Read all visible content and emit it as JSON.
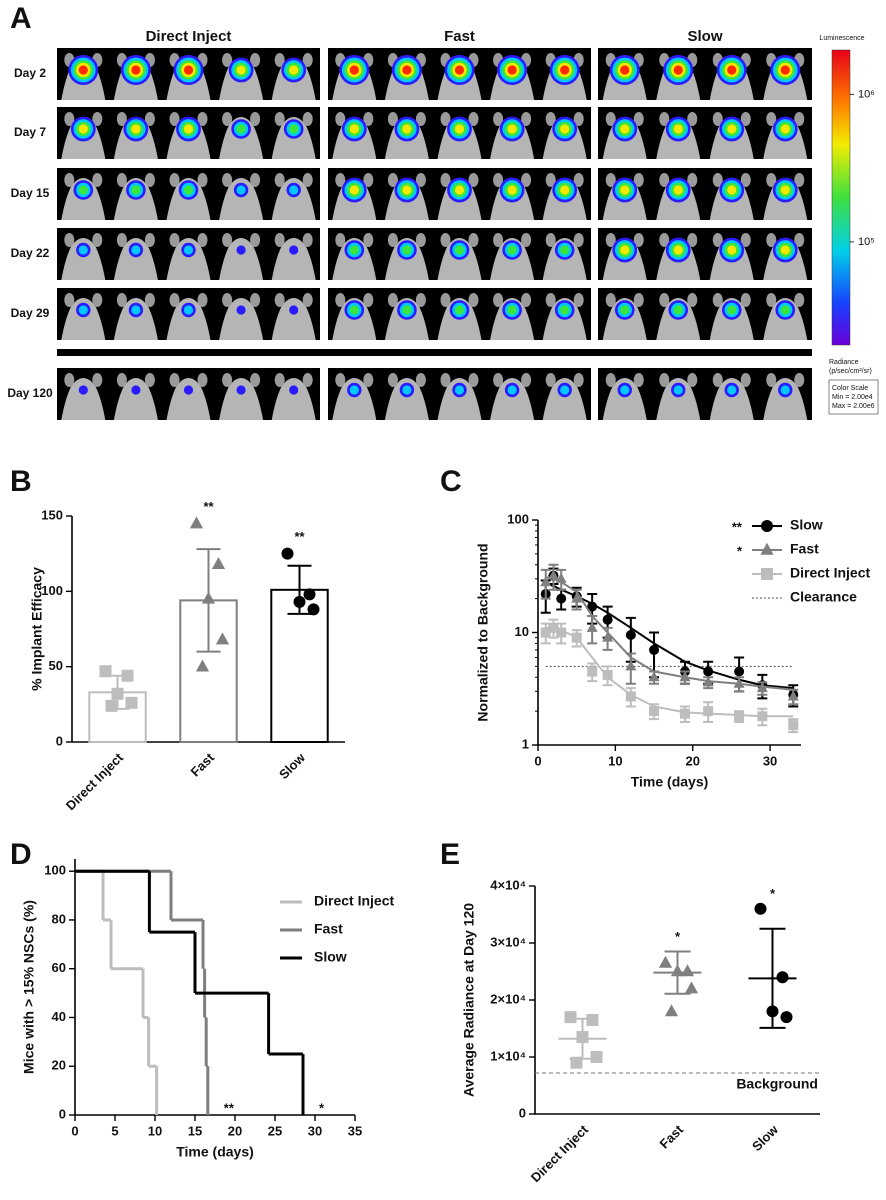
{
  "imaging": {
    "label": "A",
    "columns": [
      "Direct Inject",
      "Fast",
      "Slow"
    ],
    "rows": [
      "Day 2",
      "Day 7",
      "Day 15",
      "Day 22",
      "Day 29",
      "Day 120"
    ],
    "colorbar": {
      "title": "Luminescence",
      "lim": [
        20000,
        2000000
      ],
      "log": true,
      "ticks": [
        {
          "value": 100000,
          "label": "10⁵"
        },
        {
          "value": 1000000,
          "label": "10⁶"
        }
      ],
      "unit": [
        "Radiance",
        "(p/sec/cm²/sr)"
      ],
      "scale": [
        "Color Scale",
        "Min = 2.00e4",
        "Max = 2.00e6"
      ]
    }
  },
  "chart_data": [
    {
      "type": "bar",
      "label": "B",
      "ylabel": "% Implant Efficacy",
      "categories": [
        "Direct Inject",
        "Fast",
        "Slow"
      ],
      "values": [
        33,
        94,
        101
      ],
      "errors": [
        11,
        34,
        16
      ],
      "points": [
        [
          47,
          44,
          32,
          26,
          24
        ],
        [
          145,
          118,
          95,
          68,
          50
        ],
        [
          125,
          98,
          93,
          88
        ]
      ],
      "colors": [
        "#bdbdbd",
        "#7f7f7f",
        "#000000"
      ],
      "markers": [
        "square",
        "triangle",
        "circle"
      ],
      "annotations": [
        null,
        "**",
        "**"
      ],
      "ylim": [
        0,
        150
      ],
      "yticks": [
        0,
        50,
        100,
        150
      ]
    },
    {
      "type": "line",
      "label": "C",
      "ylabel": "Normalized to Background",
      "xlabel": "Time (days)",
      "log_y": true,
      "xlim": [
        0,
        34
      ],
      "xticks": [
        0,
        10,
        20,
        30
      ],
      "ylim": [
        1,
        100
      ],
      "yticks": [
        1,
        10,
        100
      ],
      "series": [
        {
          "name": "Slow",
          "color": "#000000",
          "marker": "circle",
          "annotation": "**",
          "x": [
            1,
            2,
            3,
            5,
            7,
            9,
            12,
            15,
            19,
            22,
            26,
            29,
            33
          ],
          "values": [
            22,
            32,
            20,
            21,
            17,
            13,
            9.5,
            7,
            4.5,
            4.5,
            4.5,
            3.4,
            2.8
          ],
          "errors": [
            7,
            5,
            4,
            4,
            5,
            4,
            4,
            3,
            1,
            1,
            1.5,
            0.8,
            0.6
          ],
          "fit": [
            27,
            26,
            24,
            21,
            18,
            15,
            11,
            8,
            5.5,
            4.6,
            3.8,
            3.4,
            3.2
          ]
        },
        {
          "name": "Fast",
          "color": "#7f7f7f",
          "marker": "triangle",
          "annotation": "*",
          "x": [
            1,
            2,
            3,
            5,
            7,
            9,
            12,
            15,
            19,
            22,
            26,
            29,
            33
          ],
          "values": [
            28,
            32,
            30,
            20,
            11,
            9,
            5,
            4,
            4,
            3.6,
            3.5,
            3.2,
            2.7
          ],
          "errors": [
            8,
            8,
            6,
            4,
            3,
            2,
            1.5,
            0.5,
            0.5,
            0.4,
            0.5,
            0.4,
            0.4
          ],
          "fit": [
            31,
            30,
            28,
            23,
            14,
            10,
            6,
            4.5,
            4,
            3.7,
            3.5,
            3.3,
            3.1
          ]
        },
        {
          "name": "Direct Inject",
          "color": "#bdbdbd",
          "marker": "square",
          "x": [
            1,
            2,
            3,
            5,
            7,
            9,
            12,
            15,
            19,
            22,
            26,
            29,
            33
          ],
          "values": [
            10,
            11,
            10,
            9,
            4.5,
            4.2,
            2.7,
            2,
            1.9,
            2,
            1.8,
            1.8,
            1.5
          ],
          "errors": [
            2,
            2,
            2,
            1.5,
            0.8,
            0.8,
            0.5,
            0.3,
            0.3,
            0.4,
            0.2,
            0.3,
            0.2
          ],
          "fit": [
            11,
            11,
            10.5,
            9,
            6,
            4,
            2.8,
            2.2,
            1.95,
            1.9,
            1.85,
            1.8,
            1.8
          ]
        }
      ],
      "reference": {
        "name": "Clearance",
        "value": 5,
        "x": [
          1,
          33
        ]
      }
    },
    {
      "type": "step",
      "label": "D",
      "ylabel": "Mice with > 15% NSCs (%)",
      "xlabel": "Time (days)",
      "xlim": [
        0,
        35
      ],
      "xticks": [
        0,
        5,
        10,
        15,
        20,
        25,
        30,
        35
      ],
      "ylim": [
        0,
        105
      ],
      "yticks": [
        0,
        20,
        40,
        60,
        80,
        100
      ],
      "series": [
        {
          "name": "Direct Inject",
          "color": "#bdbdbd",
          "x": [
            0,
            3.5,
            4.5,
            8.5,
            9.2,
            10.2
          ],
          "values": [
            100,
            80,
            60,
            40,
            20,
            0
          ]
        },
        {
          "name": "Fast",
          "color": "#7f7f7f",
          "annotation": "**",
          "x": [
            0,
            12,
            16,
            16.2,
            16.4,
            16.6
          ],
          "values": [
            100,
            80,
            60,
            40,
            20,
            0
          ]
        },
        {
          "name": "Slow",
          "color": "#000000",
          "annotation": "*",
          "x": [
            0,
            9.3,
            15,
            24.2,
            28.5
          ],
          "values": [
            100,
            75,
            50,
            25,
            0
          ]
        }
      ]
    },
    {
      "type": "strip",
      "label": "E",
      "ylabel": "Average Radiance at Day 120",
      "categories": [
        "Direct Inject",
        "Fast",
        "Slow"
      ],
      "values": [
        13200,
        24800,
        23800
      ],
      "errors": [
        3500,
        3700,
        8700
      ],
      "points": [
        [
          17000,
          16500,
          13500,
          10000,
          9000
        ],
        [
          26500,
          25000,
          25000,
          22000,
          18000
        ],
        [
          36000,
          24000,
          18000,
          17000
        ]
      ],
      "colors": [
        "#bdbdbd",
        "#7f7f7f",
        "#000000"
      ],
      "markers": [
        "square",
        "triangle",
        "circle"
      ],
      "annotations": [
        null,
        "*",
        "*"
      ],
      "ylim": [
        0,
        40000
      ],
      "yticks": [
        0,
        {
          "value": 10000,
          "label": "1×10⁴"
        },
        {
          "value": 20000,
          "label": "2×10⁴"
        },
        {
          "value": 30000,
          "label": "3×10⁴"
        },
        {
          "value": 40000,
          "label": "4×10⁴"
        }
      ],
      "reference": {
        "name": "Background",
        "value": 7200
      }
    }
  ]
}
